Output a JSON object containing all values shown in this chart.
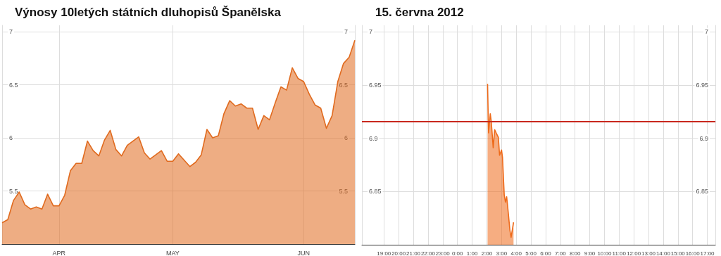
{
  "chart_data": [
    {
      "type": "area",
      "title": "Výnosy 10letých státních dluhopisů Španělska",
      "categories": [
        null,
        null,
        null,
        null,
        null,
        null,
        null,
        null,
        null,
        null,
        "APR",
        null,
        null,
        null,
        null,
        null,
        null,
        null,
        null,
        null,
        null,
        null,
        null,
        null,
        null,
        null,
        null,
        null,
        null,
        null,
        "MAY",
        null,
        null,
        null,
        null,
        null,
        null,
        null,
        null,
        null,
        null,
        null,
        null,
        null,
        null,
        null,
        null,
        null,
        null,
        null,
        null,
        null,
        null,
        "JUN",
        null,
        null,
        null,
        null,
        null,
        null,
        null,
        null,
        null
      ],
      "series": [
        {
          "color": "#e06a1e",
          "values": [
            5.2,
            5.23,
            5.41,
            5.49,
            5.37,
            5.33,
            5.35,
            5.33,
            5.47,
            5.36,
            5.36,
            5.46,
            5.69,
            5.76,
            5.76,
            5.97,
            5.88,
            5.83,
            5.98,
            6.07,
            5.89,
            5.83,
            5.93,
            5.97,
            6.01,
            5.86,
            5.8,
            5.84,
            5.88,
            5.78,
            5.78,
            5.85,
            5.79,
            5.73,
            5.77,
            5.84,
            6.08,
            6.0,
            6.02,
            6.23,
            6.35,
            6.3,
            6.32,
            6.28,
            6.28,
            6.08,
            6.21,
            6.17,
            6.33,
            6.48,
            6.45,
            6.66,
            6.56,
            6.53,
            6.41,
            6.31,
            6.28,
            6.09,
            6.21,
            6.53,
            6.7,
            6.76,
            6.92
          ]
        }
      ],
      "ylim": [
        5,
        7.06
      ],
      "yticks": [
        5.5,
        6,
        6.5,
        7
      ],
      "y2lim": [
        5,
        7.06
      ],
      "y2ticks": [
        5.5,
        6,
        6.5,
        7
      ],
      "grid": true
    },
    {
      "type": "area",
      "title": "15. června 2012",
      "series": [
        {
          "color": "#ee6a1a",
          "x": [
            "2012-06-15T02:03",
            "2012-06-15T02:07",
            "2012-06-15T02:14",
            "2012-06-15T02:18",
            "2012-06-15T02:26",
            "2012-06-15T02:32",
            "2012-06-15T02:40",
            "2012-06-15T02:47",
            "2012-06-15T02:52",
            "2012-06-15T03:00",
            "2012-06-15T03:04",
            "2012-06-15T03:11",
            "2012-06-15T03:16",
            "2012-06-15T03:21",
            "2012-06-15T03:28",
            "2012-06-15T03:34",
            "2012-06-15T03:39",
            "2012-06-15T03:44",
            "2012-06-15T03:49"
          ],
          "values": [
            6.951,
            6.905,
            6.923,
            6.916,
            6.891,
            6.908,
            6.904,
            6.901,
            6.884,
            6.889,
            6.882,
            6.847,
            6.84,
            6.845,
            6.829,
            6.814,
            6.807,
            6.814,
            6.821
          ]
        }
      ],
      "xlim": [
        "2012-06-14T17:30",
        "2012-06-15T17:33"
      ],
      "xticks": [
        {
          "value": "2012-06-14T19:00",
          "label": "19:00"
        },
        {
          "value": "2012-06-14T20:00",
          "label": "20:00"
        },
        {
          "value": "2012-06-14T21:00",
          "label": "21:00"
        },
        {
          "value": "2012-06-14T22:00",
          "label": "22:00"
        },
        {
          "value": "2012-06-14T23:00",
          "label": "23:00"
        },
        {
          "value": "2012-06-15T00:00",
          "label": "0:00"
        },
        {
          "value": "2012-06-15T01:00",
          "label": "1:00"
        },
        {
          "value": "2012-06-15T02:00",
          "label": "2:00"
        },
        {
          "value": "2012-06-15T03:00",
          "label": "3:00"
        },
        {
          "value": "2012-06-15T04:00",
          "label": "4:00"
        },
        {
          "value": "2012-06-15T05:00",
          "label": "5:00"
        },
        {
          "value": "2012-06-15T06:00",
          "label": "6:00"
        },
        {
          "value": "2012-06-15T07:00",
          "label": "7:00"
        },
        {
          "value": "2012-06-15T08:00",
          "label": "8:00"
        },
        {
          "value": "2012-06-15T09:00",
          "label": "9:00"
        },
        {
          "value": "2012-06-15T10:00",
          "label": "10:00"
        },
        {
          "value": "2012-06-15T11:00",
          "label": "11:00"
        },
        {
          "value": "2012-06-15T12:00",
          "label": "12:00"
        },
        {
          "value": "2012-06-15T13:00",
          "label": "13:00"
        },
        {
          "value": "2012-06-15T14:00",
          "label": "14:00"
        },
        {
          "value": "2012-06-15T15:00",
          "label": "15:00"
        },
        {
          "value": "2012-06-15T16:00",
          "label": "16:00"
        },
        {
          "value": "2012-06-15T17:00",
          "label": "17:00"
        }
      ],
      "ylim": [
        6.8,
        7.006
      ],
      "yticks": [
        6.85,
        6.9,
        6.95,
        7
      ],
      "y2lim": [
        6.8,
        7.006
      ],
      "y2ticks": [
        6.85,
        6.9,
        6.95,
        7
      ],
      "ref_lines": [
        {
          "axis": "y",
          "value": 6.916,
          "color": "#c8281e"
        }
      ],
      "grid": true
    }
  ]
}
